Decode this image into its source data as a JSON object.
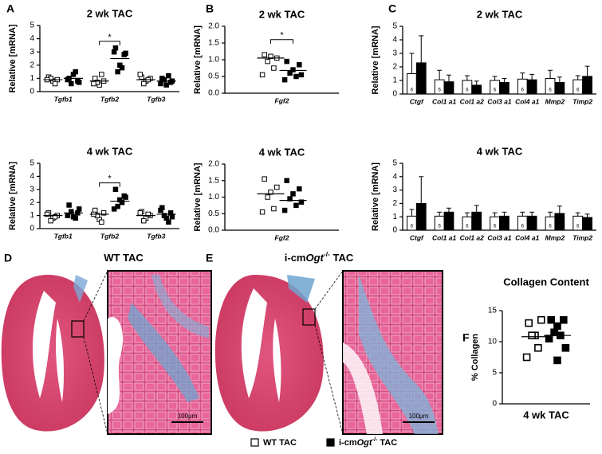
{
  "chart_data": [
    {
      "type": "dot",
      "panel": "A",
      "title": "2 wk TAC",
      "ylabel": "Relative [mRNA]",
      "categories": [
        "Tgfb1",
        "Tgfb2",
        "Tgfb3"
      ],
      "italic_categories": true,
      "ylim": [
        0,
        5
      ],
      "yticks": [
        0,
        1,
        2,
        3,
        4,
        5
      ],
      "series": [
        {
          "marker": "open-square",
          "color": "#000000",
          "values": [
            [
              1.1,
              0.9,
              0.8,
              1.0,
              0.6,
              0.9
            ],
            [
              1.0,
              0.8,
              0.5,
              0.7,
              1.3,
              0.6
            ],
            [
              1.1,
              1.0,
              0.8,
              0.6,
              0.9,
              1.3
            ]
          ],
          "means": [
            0.9,
            0.8,
            0.9
          ]
        },
        {
          "marker": "filled-square",
          "color": "#000000",
          "values": [
            [
              1.0,
              0.8,
              1.3,
              0.6,
              1.5,
              0.9,
              0.7
            ],
            [
              3.3,
              2.8,
              2.0,
              1.5,
              1.8,
              3.0,
              2.9
            ],
            [
              1.0,
              0.7,
              0.5,
              0.9,
              1.2,
              0.6,
              0.8
            ]
          ],
          "means": [
            1.0,
            2.5,
            0.8
          ]
        }
      ],
      "significance": [
        {
          "label": "*",
          "category": "Tgfb2",
          "y": 3.8
        }
      ]
    },
    {
      "type": "dot",
      "title": "4 wk TAC",
      "ylabel": "Relative [mRNA]",
      "categories": [
        "Tgfb1",
        "Tgfb2",
        "Tgfb3"
      ],
      "italic_categories": true,
      "ylim": [
        0,
        5
      ],
      "yticks": [
        0,
        1,
        2,
        3,
        4,
        5
      ],
      "series": [
        {
          "marker": "open-square",
          "color": "#000000",
          "values": [
            [
              1.2,
              1.0,
              0.8,
              0.6,
              0.9,
              1.1
            ],
            [
              1.4,
              1.2,
              0.7,
              1.0,
              0.5,
              1.1
            ],
            [
              1.3,
              1.0,
              0.8,
              0.6,
              1.1,
              1.2
            ]
          ],
          "means": [
            1.0,
            1.1,
            1.0
          ]
        },
        {
          "marker": "filled-square",
          "color": "#000000",
          "values": [
            [
              1.8,
              1.2,
              0.9,
              1.3,
              0.8,
              1.0,
              1.5
            ],
            [
              3.0,
              2.5,
              2.2,
              1.7,
              2.0,
              1.5,
              2.4
            ],
            [
              1.6,
              1.2,
              0.8,
              1.0,
              0.5,
              1.4,
              0.9
            ]
          ],
          "means": [
            1.2,
            2.1,
            1.1
          ]
        }
      ],
      "significance": [
        {
          "label": "*",
          "category": "Tgfb2",
          "y": 3.5
        }
      ]
    },
    {
      "type": "dot",
      "panel": "B",
      "title": "2 wk TAC",
      "ylabel": "Relative [mRNA]",
      "categories": [
        "Fgf2"
      ],
      "italic_categories": true,
      "ylim": [
        0,
        2
      ],
      "yticks": [
        {
          "value": 0,
          "label": "0.0"
        },
        0.5,
        {
          "value": 1,
          "label": "1.0"
        },
        1.5,
        {
          "value": 2,
          "label": "2.0"
        }
      ],
      "series": [
        {
          "marker": "open-square",
          "color": "#000000",
          "values": [
            [
              1.15,
              1.05,
              1.1,
              0.95,
              0.75,
              0.55
            ]
          ],
          "means": [
            1.05
          ]
        },
        {
          "marker": "filled-square",
          "color": "#000000",
          "values": [
            [
              0.95,
              0.85,
              0.7,
              0.6,
              0.5,
              0.4,
              0.55
            ]
          ],
          "means": [
            0.68
          ]
        }
      ],
      "significance": [
        {
          "label": "*",
          "category": "Fgf2",
          "y": 1.6
        }
      ]
    },
    {
      "type": "dot",
      "title": "4 wk TAC",
      "ylabel": "Relative [mRNA]",
      "categories": [
        "Fgf2"
      ],
      "italic_categories": true,
      "ylim": [
        0,
        2
      ],
      "yticks": [
        {
          "value": 0,
          "label": "0.0"
        },
        0.5,
        {
          "value": 1,
          "label": "1.0"
        },
        1.5,
        {
          "value": 2,
          "label": "2.0"
        }
      ],
      "series": [
        {
          "marker": "open-square",
          "color": "#000000",
          "values": [
            [
              1.55,
              1.3,
              1.15,
              1.0,
              0.65,
              0.55
            ]
          ],
          "means": [
            1.1
          ]
        },
        {
          "marker": "filled-square",
          "color": "#000000",
          "values": [
            [
              1.5,
              1.25,
              1.1,
              0.95,
              0.75,
              0.6,
              0.85
            ]
          ],
          "means": [
            0.9
          ]
        }
      ]
    },
    {
      "type": "bar",
      "panel": "C",
      "title": "2 wk TAC",
      "ylabel": "Relative [mRNA]",
      "categories": [
        "Ctgf",
        "Col1 a1",
        "Col1 a2",
        "Col3 a1",
        "Col4 a1",
        "Mmp2",
        "Timp2"
      ],
      "italic_categories": true,
      "ylim": [
        0,
        5
      ],
      "yticks": [
        0,
        1,
        2,
        3,
        4,
        5
      ],
      "series": [
        {
          "marker": "open-square",
          "color": "#ffffff",
          "values": [
            1.5,
            1.05,
            1.0,
            1.0,
            1.1,
            1.15,
            1.05
          ],
          "errors": [
            1.5,
            0.7,
            0.35,
            0.3,
            0.45,
            0.6,
            0.3
          ],
          "n": [
            6,
            6,
            6,
            6,
            6,
            6,
            6
          ]
        },
        {
          "marker": "filled-square",
          "color": "#000000",
          "values": [
            2.3,
            0.9,
            0.65,
            0.85,
            1.05,
            0.85,
            1.3
          ],
          "errors": [
            2.0,
            0.5,
            0.3,
            0.3,
            0.4,
            0.4,
            0.75
          ],
          "n": [
            7,
            7,
            7,
            7,
            7,
            7,
            7
          ]
        }
      ]
    },
    {
      "type": "bar",
      "title": "4 wk TAC",
      "ylabel": "Relative [mRNA]",
      "categories": [
        "Ctgf",
        "Col1 a1",
        "Col1 a2",
        "Col3 a1",
        "Col4 a1",
        "Mmp2",
        "Timp2"
      ],
      "italic_categories": true,
      "ylim": [
        0,
        5
      ],
      "yticks": [
        0,
        1,
        2,
        3,
        4,
        5
      ],
      "series": [
        {
          "marker": "open-square",
          "color": "#ffffff",
          "values": [
            1.05,
            1.05,
            1.0,
            1.0,
            1.05,
            1.0,
            1.05
          ],
          "errors": [
            0.5,
            0.3,
            0.3,
            0.3,
            0.3,
            0.35,
            0.25
          ],
          "n": [
            6,
            6,
            6,
            6,
            6,
            6,
            6
          ]
        },
        {
          "marker": "filled-square",
          "color": "#000000",
          "values": [
            2.0,
            1.35,
            1.35,
            1.05,
            1.05,
            1.25,
            0.95
          ],
          "errors": [
            2.0,
            0.3,
            0.5,
            0.3,
            0.3,
            0.55,
            0.25
          ],
          "n": [
            7,
            7,
            7,
            7,
            7,
            7,
            7
          ]
        }
      ]
    },
    {
      "type": "dot",
      "panel": "F",
      "title": "Collagen Content",
      "ylabel": "% Collagen",
      "xlabel": "4 wk TAC",
      "categories": [
        null
      ],
      "italic_categories": false,
      "ylim": [
        0,
        15
      ],
      "yticks": [
        0,
        5,
        10,
        15
      ],
      "series": [
        {
          "marker": "open-square-large",
          "color": "#000000",
          "values": [
            [
              13,
              13.5,
              11,
              11,
              9,
              7.5
            ]
          ],
          "means": [
            10.8
          ]
        },
        {
          "marker": "filled-square-large",
          "color": "#000000",
          "values": [
            [
              13.5,
              13.5,
              12.5,
              11.5,
              11,
              10.5,
              9,
              7
            ]
          ],
          "means": [
            11
          ]
        }
      ]
    }
  ],
  "histology": [
    {
      "panel": "D",
      "title": {
        "prefix": "WT TAC"
      },
      "scale_bar": "100μm"
    },
    {
      "panel": "E",
      "title": {
        "prefix": "i-cm",
        "italic": "Ogt",
        "sup": "-/-",
        "suffix": " TAC"
      },
      "scale_bar": "100μm"
    }
  ],
  "legend": [
    {
      "marker": "open-square",
      "text": {
        "prefix": "WT TAC"
      }
    },
    {
      "marker": "filled-square",
      "text": {
        "prefix": "i-cm",
        "italic": "Ogt",
        "sup": "-/-",
        "suffix": " TAC"
      }
    }
  ]
}
